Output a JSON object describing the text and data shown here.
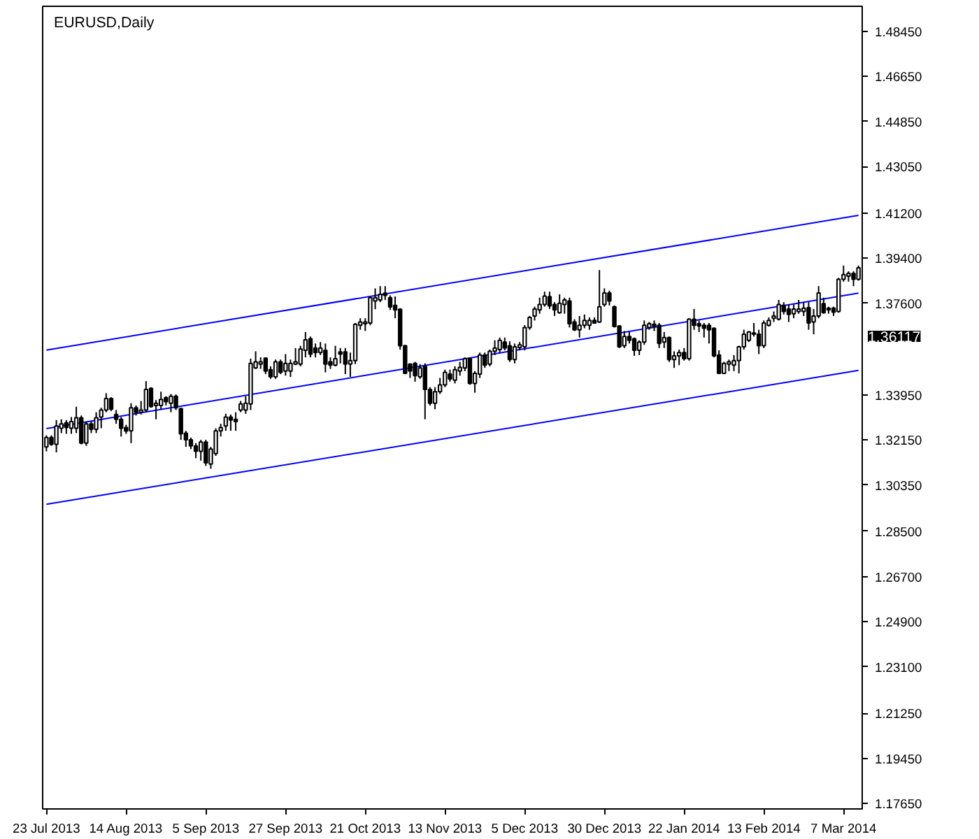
{
  "chart_data": {
    "type": "candlestick",
    "title": "EURUSD,Daily",
    "grid": false,
    "categories": [
      "23 Jul 2013",
      null,
      null,
      null,
      null,
      null,
      null,
      null,
      null,
      null,
      null,
      null,
      null,
      null,
      null,
      null,
      "14 Aug 2013",
      null,
      null,
      null,
      null,
      null,
      null,
      null,
      null,
      null,
      null,
      null,
      null,
      null,
      null,
      null,
      "5 Sep 2013",
      null,
      null,
      null,
      null,
      null,
      null,
      null,
      null,
      null,
      null,
      null,
      null,
      null,
      null,
      null,
      "27 Sep 2013",
      null,
      null,
      null,
      null,
      null,
      null,
      null,
      null,
      null,
      null,
      null,
      null,
      null,
      null,
      null,
      "21 Oct 2013",
      null,
      null,
      null,
      null,
      null,
      null,
      null,
      null,
      null,
      null,
      null,
      null,
      null,
      null,
      null,
      "13 Nov 2013",
      null,
      null,
      null,
      null,
      null,
      null,
      null,
      null,
      null,
      null,
      null,
      null,
      null,
      null,
      null,
      "5 Dec 2013",
      null,
      null,
      null,
      null,
      null,
      null,
      null,
      null,
      null,
      null,
      null,
      null,
      null,
      null,
      null,
      "30 Dec 2013",
      null,
      null,
      null,
      null,
      null,
      null,
      null,
      null,
      null,
      null,
      null,
      null,
      null,
      null,
      null,
      "22 Jan 2014",
      null,
      null,
      null,
      null,
      null,
      null,
      null,
      null,
      null,
      null,
      null,
      null,
      null,
      null,
      null,
      "13 Feb 2014",
      null,
      null,
      null,
      null,
      null,
      null,
      null,
      null,
      null,
      null,
      null,
      null,
      null,
      null,
      null,
      "7 Mar 2014",
      null,
      null,
      null
    ],
    "ylim": [
      1.1743,
      1.4944
    ],
    "yticks": [
      {
        "value": 1.4845,
        "label": "1.48450"
      },
      {
        "value": 1.4665,
        "label": "1.46650"
      },
      {
        "value": 1.4485,
        "label": "1.44850"
      },
      {
        "value": 1.4305,
        "label": "1.43050"
      },
      {
        "value": 1.412,
        "label": "1.41200"
      },
      {
        "value": 1.394,
        "label": "1.39400"
      },
      {
        "value": 1.376,
        "label": "1.37600"
      },
      {
        "value": 1.3395,
        "label": "1.33950"
      },
      {
        "value": 1.3215,
        "label": "1.32150"
      },
      {
        "value": 1.3035,
        "label": "1.30350"
      },
      {
        "value": 1.285,
        "label": "1.28500"
      },
      {
        "value": 1.267,
        "label": "1.26700"
      },
      {
        "value": 1.249,
        "label": "1.24900"
      },
      {
        "value": 1.231,
        "label": "1.23100"
      },
      {
        "value": 1.2125,
        "label": "1.21250"
      },
      {
        "value": 1.1945,
        "label": "1.19450"
      },
      {
        "value": 1.1765,
        "label": "1.17650"
      }
    ],
    "annotations": [
      "1.36117"
    ],
    "series": [
      {
        "color": "#000000",
        "ohlc": [
          [
            1.3187,
            1.3233,
            1.3169,
            1.3224
          ],
          [
            1.3224,
            1.3233,
            1.3191,
            1.3197
          ],
          [
            1.3197,
            1.3294,
            1.3165,
            1.327
          ],
          [
            1.3261,
            1.3297,
            1.3242,
            1.3279
          ],
          [
            1.3283,
            1.3294,
            1.3239,
            1.3264
          ],
          [
            1.3261,
            1.3306,
            1.3239,
            1.3288
          ],
          [
            1.3261,
            1.3347,
            1.3242,
            1.3303
          ],
          [
            1.3303,
            1.3312,
            1.3197,
            1.3202
          ],
          [
            1.3202,
            1.3288,
            1.3191,
            1.3279
          ],
          [
            1.3279,
            1.3288,
            1.3242,
            1.3257
          ],
          [
            1.3257,
            1.3325,
            1.3242,
            1.3303
          ],
          [
            1.3306,
            1.3343,
            1.3261,
            1.3334
          ],
          [
            1.3334,
            1.3401,
            1.3325,
            1.338
          ],
          [
            1.338,
            1.3385,
            1.333,
            1.3337
          ],
          [
            1.3316,
            1.3334,
            1.3279,
            1.3297
          ],
          [
            1.3297,
            1.3306,
            1.3228,
            1.3261
          ],
          [
            1.3264,
            1.3275,
            1.3239,
            1.325
          ],
          [
            1.3251,
            1.3361,
            1.3202,
            1.3343
          ],
          [
            1.3343,
            1.3352,
            1.3312,
            1.3325
          ],
          [
            1.3325,
            1.337,
            1.3316,
            1.3334
          ],
          [
            1.3334,
            1.3449,
            1.3325,
            1.3416
          ],
          [
            1.342,
            1.3425,
            1.3343,
            1.3348
          ],
          [
            1.3352,
            1.3374,
            1.3297,
            1.3361
          ],
          [
            1.3352,
            1.3407,
            1.3337,
            1.3376
          ],
          [
            1.3383,
            1.3389,
            1.3352,
            1.3367
          ],
          [
            1.3361,
            1.3398,
            1.3325,
            1.3389
          ],
          [
            1.3389,
            1.3396,
            1.3334,
            1.3343
          ],
          [
            1.3339,
            1.3343,
            1.3215,
            1.3239
          ],
          [
            1.3242,
            1.3251,
            1.3187,
            1.3215
          ],
          [
            1.3215,
            1.3224,
            1.3178,
            1.3191
          ],
          [
            1.3191,
            1.3202,
            1.3142,
            1.3169
          ],
          [
            1.3169,
            1.3215,
            1.3132,
            1.3206
          ],
          [
            1.3206,
            1.3215,
            1.3111,
            1.3123
          ],
          [
            1.3118,
            1.3187,
            1.31,
            1.3178
          ],
          [
            1.316,
            1.3261,
            1.3151,
            1.3251
          ],
          [
            1.3251,
            1.3279,
            1.3228,
            1.3264
          ],
          [
            1.327,
            1.3319,
            1.3251,
            1.3306
          ],
          [
            1.3306,
            1.3316,
            1.3251,
            1.3294
          ],
          [
            1.3297,
            1.3325,
            1.3251,
            1.3288
          ],
          [
            1.3334,
            1.337,
            1.3325,
            1.3358
          ],
          [
            1.3334,
            1.3389,
            1.3319,
            1.3361
          ],
          [
            1.3358,
            1.3539,
            1.3334,
            1.352
          ],
          [
            1.3502,
            1.3568,
            1.3498,
            1.3526
          ],
          [
            1.3517,
            1.3544,
            1.3498,
            1.3526
          ],
          [
            1.3541,
            1.3544,
            1.3477,
            1.3489
          ],
          [
            1.3495,
            1.3508,
            1.3458,
            1.3466
          ],
          [
            1.3466,
            1.3535,
            1.3458,
            1.3526
          ],
          [
            1.3526,
            1.3535,
            1.3477,
            1.3484
          ],
          [
            1.3489,
            1.3557,
            1.3471,
            1.352
          ],
          [
            1.3489,
            1.3535,
            1.3466,
            1.352
          ],
          [
            1.3517,
            1.3581,
            1.3513,
            1.3526
          ],
          [
            1.3517,
            1.359,
            1.3508,
            1.3577
          ],
          [
            1.3572,
            1.3645,
            1.3544,
            1.3614
          ],
          [
            1.3618,
            1.3627,
            1.3544,
            1.3557
          ],
          [
            1.3581,
            1.3599,
            1.3544,
            1.3563
          ],
          [
            1.3563,
            1.3605,
            1.3553,
            1.3581
          ],
          [
            1.3572,
            1.3599,
            1.3484,
            1.3517
          ],
          [
            1.3526,
            1.3544,
            1.3498,
            1.3513
          ],
          [
            1.3513,
            1.359,
            1.3508,
            1.3539
          ],
          [
            1.3566,
            1.3581,
            1.352,
            1.3557
          ],
          [
            1.3566,
            1.3581,
            1.3477,
            1.3517
          ],
          [
            1.3517,
            1.3563,
            1.3466,
            1.3531
          ],
          [
            1.3531,
            1.3681,
            1.3517,
            1.3676
          ],
          [
            1.3672,
            1.37,
            1.3654,
            1.3685
          ],
          [
            1.3678,
            1.37,
            1.3649,
            1.3685
          ],
          [
            1.3681,
            1.3787,
            1.3672,
            1.3782
          ],
          [
            1.3769,
            1.3819,
            1.3736,
            1.3782
          ],
          [
            1.3773,
            1.3828,
            1.3764,
            1.3795
          ],
          [
            1.38,
            1.3828,
            1.3773,
            1.3791
          ],
          [
            1.3782,
            1.3791,
            1.3733,
            1.3745
          ],
          [
            1.3751,
            1.3787,
            1.37,
            1.3733
          ],
          [
            1.3736,
            1.374,
            1.3575,
            1.359
          ],
          [
            1.359,
            1.3594,
            1.3477,
            1.348
          ],
          [
            1.3517,
            1.352,
            1.3462,
            1.3489
          ],
          [
            1.352,
            1.3526,
            1.3447,
            1.3471
          ],
          [
            1.3466,
            1.3517,
            1.3458,
            1.3502
          ],
          [
            1.3508,
            1.352,
            1.3297,
            1.3416
          ],
          [
            1.3416,
            1.3425,
            1.3352,
            1.3361
          ],
          [
            1.3361,
            1.3425,
            1.3337,
            1.3407
          ],
          [
            1.3407,
            1.3462,
            1.3398,
            1.3434
          ],
          [
            1.3434,
            1.3495,
            1.3425,
            1.3484
          ],
          [
            1.3477,
            1.3495,
            1.3447,
            1.3458
          ],
          [
            1.3453,
            1.3508,
            1.344,
            1.3495
          ],
          [
            1.3489,
            1.3526,
            1.3471,
            1.3504
          ],
          [
            1.3502,
            1.3544,
            1.3489,
            1.3539
          ],
          [
            1.3539,
            1.3544,
            1.3435,
            1.344
          ],
          [
            1.344,
            1.3489,
            1.3403,
            1.348
          ],
          [
            1.3477,
            1.3563,
            1.3462,
            1.3553
          ],
          [
            1.3553,
            1.3563,
            1.3502,
            1.3513
          ],
          [
            1.3517,
            1.3575,
            1.3508,
            1.3568
          ],
          [
            1.3568,
            1.3612,
            1.3553,
            1.3581
          ],
          [
            1.3575,
            1.3623,
            1.3563,
            1.3612
          ],
          [
            1.3605,
            1.3623,
            1.3572,
            1.3581
          ],
          [
            1.359,
            1.3608,
            1.3526,
            1.3535
          ],
          [
            1.3535,
            1.3599,
            1.352,
            1.3586
          ],
          [
            1.3583,
            1.3605,
            1.3572,
            1.3594
          ],
          [
            1.3586,
            1.3672,
            1.3572,
            1.3663
          ],
          [
            1.3663,
            1.3709,
            1.3654,
            1.3703
          ],
          [
            1.3709,
            1.3746,
            1.3691,
            1.3737
          ],
          [
            1.3733,
            1.3782,
            1.3718,
            1.3755
          ],
          [
            1.3755,
            1.3806,
            1.3746,
            1.3788
          ],
          [
            1.3786,
            1.3806,
            1.3737,
            1.3749
          ],
          [
            1.3755,
            1.3764,
            1.3709,
            1.3733
          ],
          [
            1.3722,
            1.3795,
            1.3718,
            1.376
          ],
          [
            1.3755,
            1.3782,
            1.3718,
            1.3773
          ],
          [
            1.3769,
            1.3782,
            1.3663,
            1.3678
          ],
          [
            1.3685,
            1.3696,
            1.3649,
            1.3654
          ],
          [
            1.3654,
            1.3709,
            1.3623,
            1.3672
          ],
          [
            1.3672,
            1.3715,
            1.366,
            1.3691
          ],
          [
            1.3672,
            1.3703,
            1.3654,
            1.3691
          ],
          [
            1.3691,
            1.3703,
            1.3678,
            1.3681
          ],
          [
            1.3685,
            1.3892,
            1.3681,
            1.3746
          ],
          [
            1.3755,
            1.3819,
            1.3746,
            1.3801
          ],
          [
            1.3801,
            1.381,
            1.3751,
            1.3769
          ],
          [
            1.3746,
            1.3751,
            1.3663,
            1.3667
          ],
          [
            1.3669,
            1.3672,
            1.3581,
            1.3586
          ],
          [
            1.359,
            1.3649,
            1.3581,
            1.3627
          ],
          [
            1.3627,
            1.3645,
            1.3599,
            1.3612
          ],
          [
            1.3618,
            1.3623,
            1.355,
            1.3572
          ],
          [
            1.3572,
            1.3612,
            1.3553,
            1.3605
          ],
          [
            1.3605,
            1.3691,
            1.3594,
            1.3672
          ],
          [
            1.3663,
            1.3685,
            1.3654,
            1.3678
          ],
          [
            1.3676,
            1.3691,
            1.3649,
            1.3667
          ],
          [
            1.3672,
            1.3681,
            1.3581,
            1.3599
          ],
          [
            1.3605,
            1.3645,
            1.3581,
            1.3623
          ],
          [
            1.3623,
            1.3627,
            1.3526,
            1.3535
          ],
          [
            1.3535,
            1.3568,
            1.3502,
            1.355
          ],
          [
            1.355,
            1.3575,
            1.3513,
            1.3563
          ],
          [
            1.3563,
            1.3581,
            1.3531,
            1.3539
          ],
          [
            1.3539,
            1.37,
            1.3531,
            1.3696
          ],
          [
            1.3696,
            1.3737,
            1.3654,
            1.3672
          ],
          [
            1.3678,
            1.3691,
            1.3645,
            1.3669
          ],
          [
            1.3672,
            1.3681,
            1.3623,
            1.366
          ],
          [
            1.3672,
            1.3681,
            1.3599,
            1.3654
          ],
          [
            1.366,
            1.3663,
            1.3544,
            1.355
          ],
          [
            1.3553,
            1.3572,
            1.3477,
            1.348
          ],
          [
            1.348,
            1.3526,
            1.3477,
            1.352
          ],
          [
            1.3517,
            1.3535,
            1.3489,
            1.3526
          ],
          [
            1.3513,
            1.3553,
            1.3489,
            1.3531
          ],
          [
            1.3531,
            1.359,
            1.348,
            1.3586
          ],
          [
            1.3586,
            1.3654,
            1.3575,
            1.3636
          ],
          [
            1.3612,
            1.3649,
            1.3605,
            1.3645
          ],
          [
            1.3641,
            1.3681,
            1.3627,
            1.3636
          ],
          [
            1.3636,
            1.3654,
            1.3557,
            1.359
          ],
          [
            1.359,
            1.3691,
            1.3581,
            1.3681
          ],
          [
            1.3672,
            1.3703,
            1.3667,
            1.3691
          ],
          [
            1.37,
            1.3727,
            1.3685,
            1.3709
          ],
          [
            1.3696,
            1.3773,
            1.3691,
            1.3755
          ],
          [
            1.3751,
            1.3764,
            1.3715,
            1.3727
          ],
          [
            1.3737,
            1.3755,
            1.3685,
            1.3715
          ],
          [
            1.3718,
            1.3755,
            1.37,
            1.3737
          ],
          [
            1.3727,
            1.3773,
            1.3718,
            1.3737
          ],
          [
            1.3727,
            1.3764,
            1.3709,
            1.374
          ],
          [
            1.3742,
            1.3764,
            1.3654,
            1.3681
          ],
          [
            1.3685,
            1.3737,
            1.3636,
            1.3709
          ],
          [
            1.3709,
            1.3828,
            1.37,
            1.3801
          ],
          [
            1.3758,
            1.3782,
            1.3718,
            1.3722
          ],
          [
            1.374,
            1.3746,
            1.3718,
            1.3733
          ],
          [
            1.374,
            1.3746,
            1.3709,
            1.3724
          ],
          [
            1.3727,
            1.3861,
            1.3722,
            1.3855
          ],
          [
            1.3855,
            1.391,
            1.3846,
            1.3874
          ],
          [
            1.3868,
            1.3887,
            1.3846,
            1.3879
          ],
          [
            1.3879,
            1.3887,
            1.3828,
            1.3855
          ],
          [
            1.3855,
            1.391,
            1.385,
            1.3901
          ]
        ]
      },
      {
        "type": "line",
        "color": "#0000ff",
        "values": [
          1.3573,
          null,
          null,
          null,
          null,
          null,
          null,
          null,
          null,
          null,
          null,
          null,
          null,
          null,
          null,
          null,
          null,
          null,
          null,
          null,
          null,
          null,
          null,
          null,
          null,
          null,
          null,
          null,
          null,
          null,
          null,
          null,
          null,
          null,
          null,
          null,
          null,
          null,
          null,
          null,
          null,
          null,
          null,
          null,
          null,
          null,
          null,
          null,
          null,
          null,
          null,
          null,
          null,
          null,
          null,
          null,
          null,
          null,
          null,
          null,
          null,
          null,
          null,
          null,
          null,
          null,
          null,
          null,
          null,
          null,
          null,
          null,
          null,
          null,
          null,
          null,
          null,
          null,
          null,
          null,
          null,
          null,
          null,
          null,
          null,
          null,
          null,
          null,
          null,
          null,
          null,
          null,
          null,
          null,
          null,
          null,
          null,
          null,
          null,
          null,
          null,
          null,
          null,
          null,
          null,
          null,
          null,
          null,
          null,
          null,
          null,
          null,
          null,
          null,
          null,
          null,
          null,
          null,
          null,
          null,
          null,
          null,
          null,
          null,
          null,
          null,
          null,
          null,
          null,
          null,
          null,
          null,
          null,
          null,
          null,
          null,
          null,
          null,
          null,
          null,
          null,
          null,
          null,
          null,
          null,
          null,
          null,
          null,
          null,
          null,
          null,
          null,
          null,
          null,
          null,
          null,
          null,
          null,
          null,
          null,
          null,
          null,
          null,
          1.411
        ]
      },
      {
        "type": "line",
        "color": "#0000ff",
        "values": [
          1.326,
          null,
          null,
          null,
          null,
          null,
          null,
          null,
          null,
          null,
          null,
          null,
          null,
          null,
          null,
          null,
          null,
          null,
          null,
          null,
          null,
          null,
          null,
          null,
          null,
          null,
          null,
          null,
          null,
          null,
          null,
          null,
          null,
          null,
          null,
          null,
          null,
          null,
          null,
          null,
          null,
          null,
          null,
          null,
          null,
          null,
          null,
          null,
          null,
          null,
          null,
          null,
          null,
          null,
          null,
          null,
          null,
          null,
          null,
          null,
          null,
          null,
          null,
          null,
          null,
          null,
          null,
          null,
          null,
          null,
          null,
          null,
          null,
          null,
          null,
          null,
          null,
          null,
          null,
          null,
          null,
          null,
          null,
          null,
          null,
          null,
          null,
          null,
          null,
          null,
          null,
          null,
          null,
          null,
          null,
          null,
          null,
          null,
          null,
          null,
          null,
          null,
          null,
          null,
          null,
          null,
          null,
          null,
          null,
          null,
          null,
          null,
          null,
          null,
          null,
          null,
          null,
          null,
          null,
          null,
          null,
          null,
          null,
          null,
          null,
          null,
          null,
          null,
          null,
          null,
          null,
          null,
          null,
          null,
          null,
          null,
          null,
          null,
          null,
          null,
          null,
          null,
          null,
          null,
          null,
          null,
          null,
          null,
          null,
          null,
          null,
          null,
          null,
          null,
          null,
          null,
          null,
          null,
          null,
          null,
          null,
          null,
          null,
          1.38
        ]
      },
      {
        "type": "line",
        "color": "#0000ff",
        "values": [
          1.2958,
          null,
          null,
          null,
          null,
          null,
          null,
          null,
          null,
          null,
          null,
          null,
          null,
          null,
          null,
          null,
          null,
          null,
          null,
          null,
          null,
          null,
          null,
          null,
          null,
          null,
          null,
          null,
          null,
          null,
          null,
          null,
          null,
          null,
          null,
          null,
          null,
          null,
          null,
          null,
          null,
          null,
          null,
          null,
          null,
          null,
          null,
          null,
          null,
          null,
          null,
          null,
          null,
          null,
          null,
          null,
          null,
          null,
          null,
          null,
          null,
          null,
          null,
          null,
          null,
          null,
          null,
          null,
          null,
          null,
          null,
          null,
          null,
          null,
          null,
          null,
          null,
          null,
          null,
          null,
          null,
          null,
          null,
          null,
          null,
          null,
          null,
          null,
          null,
          null,
          null,
          null,
          null,
          null,
          null,
          null,
          null,
          null,
          null,
          null,
          null,
          null,
          null,
          null,
          null,
          null,
          null,
          null,
          null,
          null,
          null,
          null,
          null,
          null,
          null,
          null,
          null,
          null,
          null,
          null,
          null,
          null,
          null,
          null,
          null,
          null,
          null,
          null,
          null,
          null,
          null,
          null,
          null,
          null,
          null,
          null,
          null,
          null,
          null,
          null,
          null,
          null,
          null,
          null,
          null,
          null,
          null,
          null,
          null,
          null,
          null,
          null,
          null,
          null,
          null,
          null,
          null,
          null,
          null,
          null,
          null,
          null,
          null,
          1.3492
        ]
      }
    ]
  }
}
